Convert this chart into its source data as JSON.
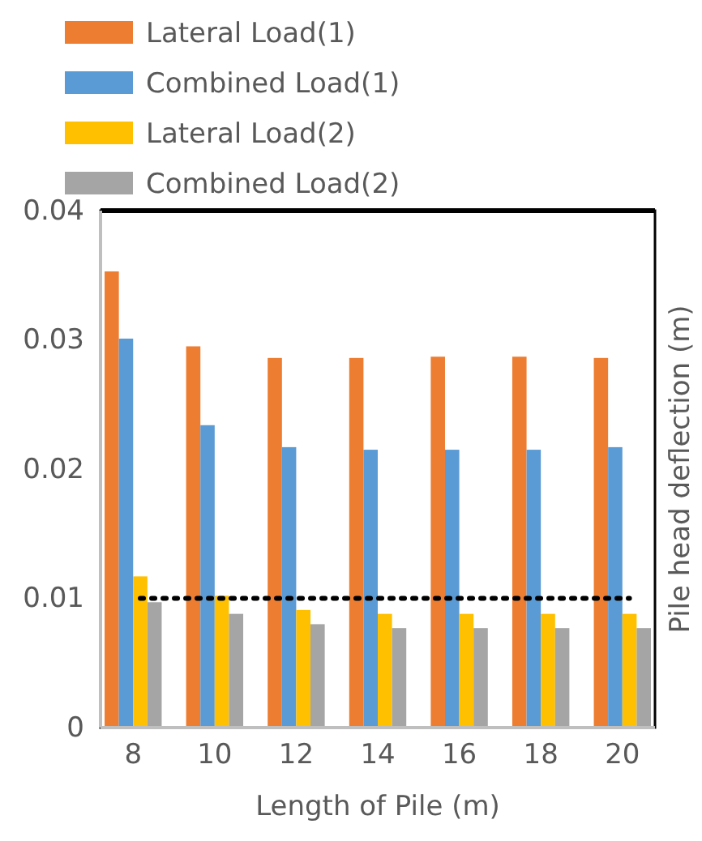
{
  "chart_data": {
    "type": "bar",
    "xlabel": "Length of Pile (m)",
    "ylabel": "Pile head deflection (m)",
    "categories": [
      "8",
      "10",
      "12",
      "14",
      "16",
      "18",
      "20"
    ],
    "series": [
      {
        "name": "Lateral Load(1)",
        "color": "#ed7d31",
        "values": [
          0.0353,
          0.0295,
          0.0286,
          0.0286,
          0.0287,
          0.0287,
          0.0286
        ]
      },
      {
        "name": "Combined Load(1)",
        "color": "#5b9bd5",
        "values": [
          0.0301,
          0.0234,
          0.0217,
          0.0215,
          0.0215,
          0.0215,
          0.0217
        ]
      },
      {
        "name": "Lateral Load(2)",
        "color": "#ffc000",
        "values": [
          0.0117,
          0.0102,
          0.0091,
          0.0088,
          0.0088,
          0.0088,
          0.0088
        ]
      },
      {
        "name": "Combined Load(2)",
        "color": "#a5a5a5",
        "values": [
          0.0097,
          0.0088,
          0.008,
          0.0077,
          0.0077,
          0.0077,
          0.0077
        ]
      }
    ],
    "ylim": [
      0,
      0.04
    ],
    "yticks": [
      0,
      0.01,
      0.02,
      0.03,
      0.04
    ],
    "ref_lines": [
      {
        "axis": "y",
        "value": 0.01,
        "color": "#000000",
        "line_style": "dotted"
      }
    ],
    "legend": "top",
    "grid": false
  }
}
